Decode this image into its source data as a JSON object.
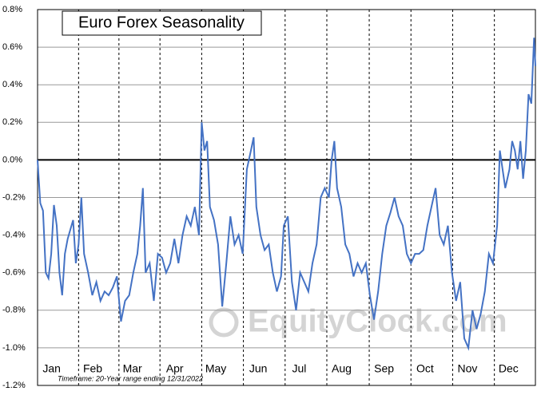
{
  "chart_data": {
    "type": "line",
    "title": "Euro Forex Seasonality",
    "footnote": "Timeframe: 20-Year range ending 12/31/2022",
    "watermark": "EquityClock.com",
    "color": "#4472c4",
    "xlim": [
      1,
      365
    ],
    "xticks": [
      {
        "value": 16,
        "label": "Jan"
      },
      {
        "value": 46,
        "label": "Feb"
      },
      {
        "value": 75,
        "label": "Mar"
      },
      {
        "value": 106,
        "label": "Apr"
      },
      {
        "value": 136,
        "label": "May"
      },
      {
        "value": 167,
        "label": "Jun"
      },
      {
        "value": 197,
        "label": "Jul"
      },
      {
        "value": 228,
        "label": "Aug"
      },
      {
        "value": 259,
        "label": "Sep"
      },
      {
        "value": 289,
        "label": "Oct"
      },
      {
        "value": 320,
        "label": "Nov"
      },
      {
        "value": 350,
        "label": "Dec"
      }
    ],
    "ylim": [
      -1.2,
      0.8
    ],
    "yticks": [
      {
        "value": -1.2,
        "label": "-1.2%"
      },
      {
        "value": -1.0,
        "label": "-1.0%"
      },
      {
        "value": -0.8,
        "label": "-0.8%"
      },
      {
        "value": -0.6,
        "label": "-0.6%"
      },
      {
        "value": -0.4,
        "label": "-0.4%"
      },
      {
        "value": -0.2,
        "label": "-0.2%"
      },
      {
        "value": 0,
        "label": "0.0%"
      },
      {
        "value": 0.2,
        "label": "0.2%"
      },
      {
        "value": 0.4,
        "label": "0.4%"
      },
      {
        "value": 0.6,
        "label": "0.6%"
      },
      {
        "value": 0.8,
        "label": "0.8%"
      }
    ],
    "grid": true,
    "x": [
      1,
      3,
      5,
      7,
      9,
      11,
      13,
      15,
      17,
      19,
      21,
      23,
      25,
      27,
      29,
      31,
      33,
      35,
      38,
      41,
      44,
      47,
      50,
      53,
      56,
      59,
      62,
      65,
      68,
      71,
      74,
      76,
      78,
      80,
      83,
      86,
      89,
      92,
      95,
      98,
      101,
      104,
      107,
      110,
      113,
      116,
      119,
      121,
      123,
      125,
      127,
      130,
      133,
      136,
      139,
      142,
      145,
      148,
      151,
      154,
      157,
      159,
      161,
      164,
      167,
      170,
      173,
      176,
      179,
      181,
      184,
      187,
      190,
      193,
      196,
      199,
      202,
      205,
      208,
      211,
      214,
      216,
      218,
      220,
      223,
      226,
      229,
      232,
      235,
      238,
      241,
      244,
      247,
      250,
      253,
      256,
      259,
      262,
      265,
      268,
      271,
      274,
      277,
      280,
      283,
      286,
      289,
      292,
      295,
      298,
      301,
      304,
      307,
      310,
      313,
      316,
      319,
      322,
      325,
      328,
      331,
      334,
      337,
      339,
      341,
      343,
      346,
      348,
      350,
      352,
      354,
      356,
      358,
      360,
      362,
      364,
      365
    ],
    "values": [
      0,
      -0.23,
      -0.27,
      -0.6,
      -0.63,
      -0.5,
      -0.24,
      -0.35,
      -0.6,
      -0.72,
      -0.5,
      -0.42,
      -0.37,
      -0.32,
      -0.55,
      -0.45,
      -0.2,
      -0.5,
      -0.6,
      -0.72,
      -0.65,
      -0.75,
      -0.7,
      -0.72,
      -0.68,
      -0.62,
      -0.86,
      -0.75,
      -0.72,
      -0.6,
      -0.5,
      -0.35,
      -0.15,
      -0.6,
      -0.55,
      -0.75,
      -0.5,
      -0.52,
      -0.6,
      -0.55,
      -0.42,
      -0.55,
      -0.4,
      -0.3,
      -0.35,
      -0.25,
      -0.4,
      0.2,
      0.05,
      0.1,
      -0.25,
      -0.32,
      -0.45,
      -0.78,
      -0.55,
      -0.3,
      -0.45,
      -0.4,
      -0.5,
      -0.05,
      0.05,
      0.12,
      -0.25,
      -0.4,
      -0.48,
      -0.45,
      -0.6,
      -0.7,
      -0.62,
      -0.35,
      -0.3,
      -0.65,
      -0.8,
      -0.6,
      -0.65,
      -0.7,
      -0.55,
      -0.45,
      -0.2,
      -0.15,
      -0.2,
      0.0,
      0.1,
      -0.15,
      -0.25,
      -0.45,
      -0.5,
      -0.62,
      -0.55,
      -0.6,
      -0.55,
      -0.72,
      -0.85,
      -0.7,
      -0.5,
      -0.35,
      -0.28,
      -0.2,
      -0.3,
      -0.35,
      -0.5,
      -0.55,
      -0.5,
      -0.5,
      -0.48,
      -0.35,
      -0.25,
      -0.15,
      -0.4,
      -0.45,
      -0.35,
      -0.6,
      -0.75,
      -0.65,
      -0.95,
      -1.0,
      -0.8,
      -0.9,
      -0.82,
      -0.7,
      -0.5,
      -0.55,
      -0.35,
      0.05,
      -0.05,
      -0.15,
      -0.05,
      0.1,
      0.05,
      -0.05,
      0.1,
      -0.1,
      0.05,
      0.35,
      0.3,
      0.65,
      0.5
    ]
  }
}
